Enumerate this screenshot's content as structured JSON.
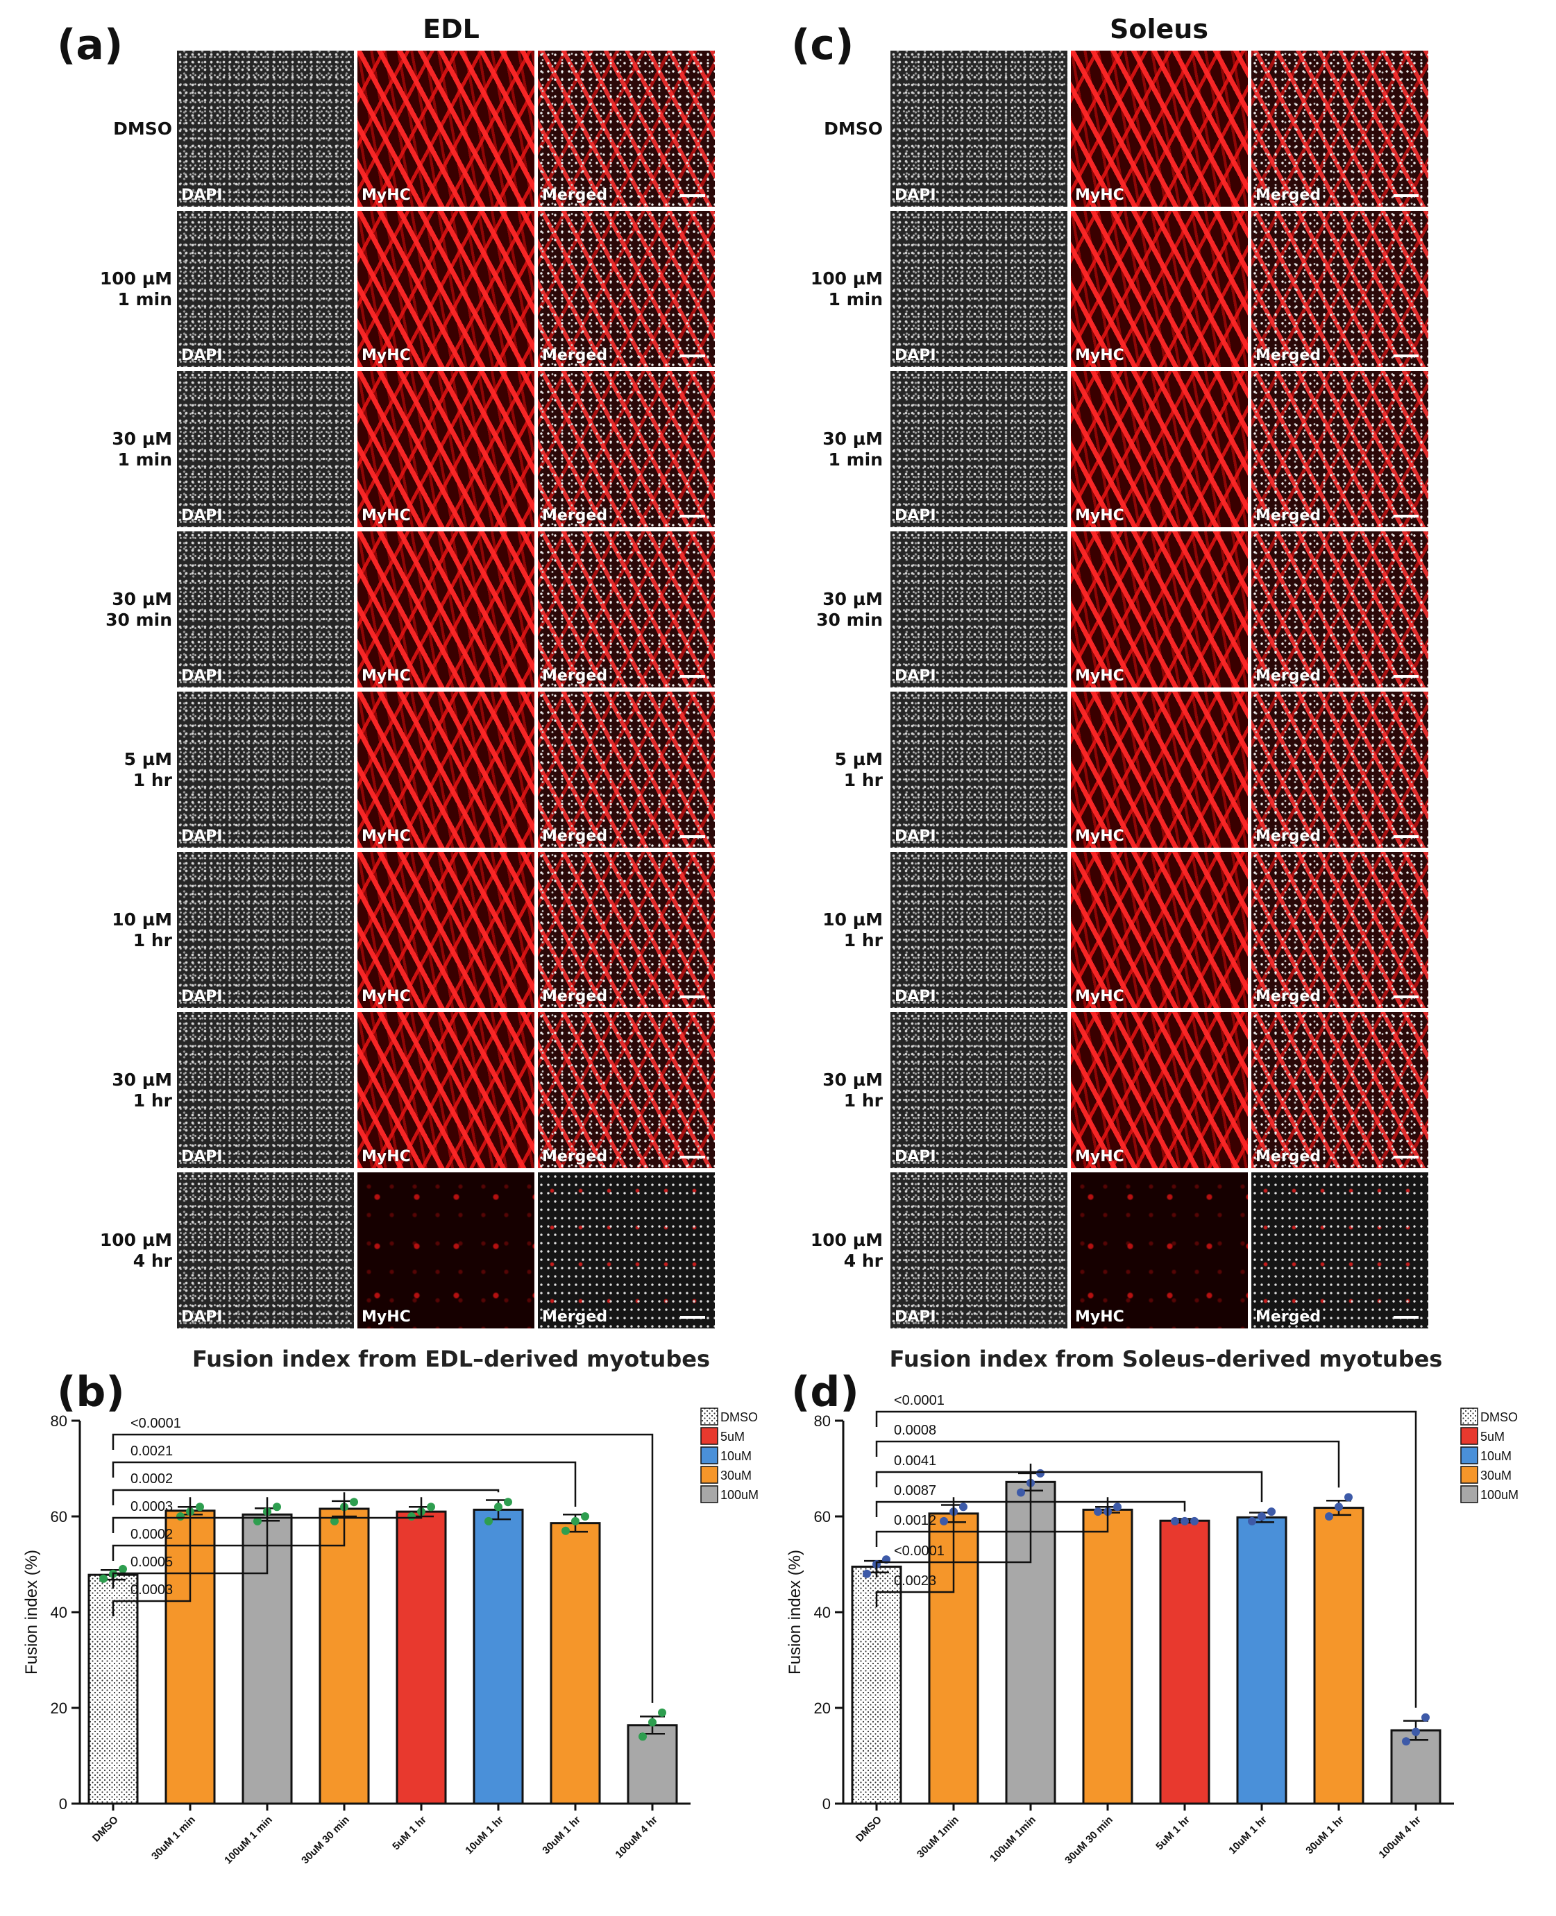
{
  "panels": [
    {
      "letter": "(a)",
      "title": "EDL"
    },
    {
      "letter": "(b)"
    },
    {
      "letter": "(c)",
      "title": "Soleus"
    },
    {
      "letter": "(d)"
    }
  ],
  "image_grid": {
    "rows": [
      "DMSO",
      "100 µM\n1 min",
      "30 µM\n1 min",
      "30 µM\n30 min",
      "5 µM\n1 hr",
      "10 µM\n1 hr",
      "30 µM\n1 hr",
      "100 µM\n4 hr"
    ],
    "channel_tags": [
      "DAPI",
      "MyHC",
      "Merged"
    ]
  },
  "colors": {
    "DMSO": "#ffffff",
    "5uM": "#e8392e",
    "10uM": "#4a90d9",
    "30uM": "#f5962a",
    "100uM": "#a8a8a8",
    "edl_dot": "#2e9e4f",
    "soleus_dot": "#3d5aa8"
  },
  "chart_data": [
    {
      "type": "bar",
      "title": "Fusion index from EDL–derived myotubes",
      "ylabel": "Fusion index (%)",
      "xlabel": "",
      "ylim": [
        0,
        80
      ],
      "yticks": [
        0,
        20,
        40,
        60,
        80
      ],
      "categories": [
        "DMSO",
        "30uM 1 min",
        "100uM 1 min",
        "30uM 30 min",
        "5uM 1 hr",
        "10uM 1 hr",
        "30uM 1 hr",
        "100uM 4 hr"
      ],
      "groups": [
        "DMSO",
        "30uM",
        "100uM",
        "30uM",
        "5uM",
        "10uM",
        "30uM",
        "100uM"
      ],
      "values": [
        47.8,
        61.2,
        60.4,
        61.6,
        61.0,
        61.4,
        58.6,
        16.4
      ],
      "errors": [
        1.0,
        0.8,
        1.3,
        1.6,
        1.0,
        2.0,
        1.8,
        1.8
      ],
      "points": [
        [
          47,
          48,
          49
        ],
        [
          60,
          61,
          62
        ],
        [
          59,
          61,
          62
        ],
        [
          59,
          62,
          63
        ],
        [
          60,
          61,
          62
        ],
        [
          59,
          62,
          63
        ],
        [
          57,
          59,
          60
        ],
        [
          14,
          17,
          19
        ]
      ],
      "pvalues": [
        "0.0003",
        "0.0005",
        "0.0002",
        "0.0003",
        "0.0002",
        "0.0021",
        "<0.0001"
      ],
      "legend": [
        "DMSO",
        "5uM",
        "10uM",
        "30uM",
        "100uM"
      ],
      "legend_position": "top-right"
    },
    {
      "type": "bar",
      "title": "Fusion index from Soleus–derived myotubes",
      "ylabel": "Fusion index (%)",
      "xlabel": "",
      "ylim": [
        0,
        80
      ],
      "yticks": [
        0,
        20,
        40,
        60,
        80
      ],
      "categories": [
        "DMSO",
        "30uM 1min",
        "100uM 1min",
        "30uM 30 min",
        "5uM 1 hr",
        "10uM 1 hr",
        "30uM 1 hr",
        "100uM 4 hr"
      ],
      "groups": [
        "DMSO",
        "30uM",
        "100uM",
        "30uM",
        "5uM",
        "10uM",
        "30uM",
        "100uM"
      ],
      "values": [
        49.5,
        60.6,
        67.2,
        61.4,
        59.1,
        59.8,
        61.8,
        15.3
      ],
      "errors": [
        1.2,
        1.8,
        1.8,
        0.6,
        0.4,
        1.0,
        1.5,
        2.0
      ],
      "points": [
        [
          48,
          50,
          51
        ],
        [
          59,
          61,
          62
        ],
        [
          65,
          67,
          69
        ],
        [
          61,
          61,
          62
        ],
        [
          59,
          59,
          59
        ],
        [
          59,
          60,
          61
        ],
        [
          60,
          62,
          64
        ],
        [
          13,
          15,
          18
        ]
      ],
      "pvalues": [
        "0.0023",
        "<0.0001",
        "0.0012",
        "0.0087",
        "0.0041",
        "0.0008",
        "<0.0001"
      ],
      "legend": [
        "DMSO",
        "5uM",
        "10uM",
        "30uM",
        "100uM"
      ],
      "legend_position": "top-right"
    }
  ]
}
